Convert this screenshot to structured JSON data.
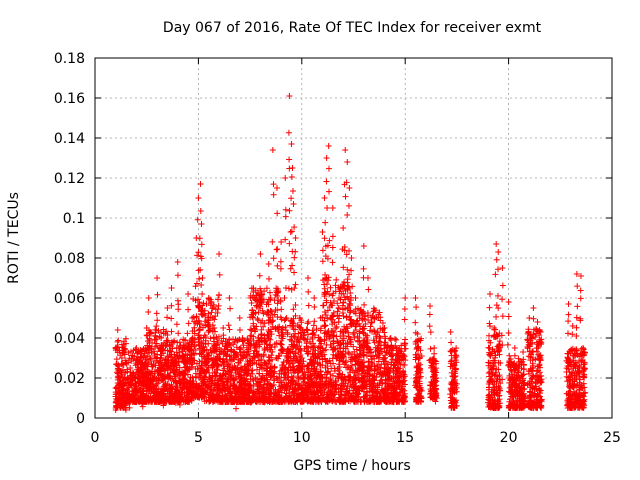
{
  "chart_data": {
    "type": "scatter",
    "title": "Day 067 of 2016, Rate Of TEC Index for receiver exmt",
    "xlabel": "GPS time / hours",
    "ylabel": "ROTI / TECUs",
    "xlim": [
      0,
      25
    ],
    "ylim": [
      0,
      0.18
    ],
    "x_ticks": [
      0,
      5,
      10,
      15,
      20,
      25
    ],
    "x_tick_labels": [
      "0",
      "5",
      "10",
      "15",
      "20",
      "25"
    ],
    "y_ticks": [
      0,
      0.02,
      0.04,
      0.06,
      0.08,
      0.1,
      0.12,
      0.14,
      0.16,
      0.18
    ],
    "y_tick_labels": [
      "0",
      "0.02",
      "0.04",
      "0.06",
      "0.08",
      "0.1",
      "0.12",
      "0.14",
      "0.16",
      "0.18"
    ],
    "grid": true,
    "marker": "plus",
    "color": "#ff0000",
    "series": [
      {
        "x": [
          1.0,
          1.1,
          1.2,
          1.3,
          1.5,
          1.7,
          2.0,
          2.3,
          2.5,
          2.6,
          2.7,
          2.8,
          3.0,
          3.2,
          3.3,
          3.5,
          3.7,
          3.9,
          4.0,
          4.1,
          4.3,
          4.5,
          4.7,
          4.9,
          5.0,
          5.1,
          5.15,
          5.2,
          5.25,
          5.3,
          5.5,
          5.7,
          5.9,
          6.0,
          6.2,
          6.5,
          6.8,
          7.0,
          7.3,
          7.5,
          7.7,
          8.0,
          8.2,
          8.4,
          8.5,
          8.6,
          8.8,
          9.0,
          9.2,
          9.4,
          9.5,
          9.55,
          9.6,
          9.7,
          9.9,
          10.0,
          10.3,
          10.6,
          10.9,
          11.0,
          11.1,
          11.2,
          11.3,
          11.5,
          11.8,
          12.0,
          12.1,
          12.2,
          12.3,
          12.4,
          12.6,
          12.8,
          13.0,
          13.2,
          13.5,
          13.8,
          14.0,
          14.3,
          14.6,
          14.9,
          15.0,
          15.5,
          15.6,
          15.7,
          16.2,
          16.4,
          16.5,
          17.2,
          17.4,
          19.1,
          19.3,
          19.4,
          19.5,
          19.7,
          20.0,
          20.3,
          20.5,
          20.7,
          21.0,
          21.2,
          21.4,
          21.5,
          22.9,
          23.1,
          23.3,
          23.5,
          23.6
        ],
        "y": [
          0.015,
          0.044,
          0.02,
          0.03,
          0.012,
          0.025,
          0.035,
          0.018,
          0.045,
          0.06,
          0.03,
          0.02,
          0.07,
          0.04,
          0.015,
          0.055,
          0.065,
          0.03,
          0.078,
          0.02,
          0.035,
          0.062,
          0.05,
          0.09,
          0.11,
          0.117,
          0.097,
          0.07,
          0.04,
          0.03,
          0.06,
          0.05,
          0.03,
          0.082,
          0.045,
          0.06,
          0.025,
          0.05,
          0.03,
          0.035,
          0.06,
          0.082,
          0.04,
          0.077,
          0.06,
          0.134,
          0.115,
          0.088,
          0.12,
          0.161,
          0.137,
          0.125,
          0.107,
          0.09,
          0.05,
          0.03,
          0.07,
          0.06,
          0.05,
          0.093,
          0.11,
          0.13,
          0.136,
          0.105,
          0.06,
          0.095,
          0.134,
          0.128,
          0.115,
          0.08,
          0.06,
          0.05,
          0.086,
          0.07,
          0.05,
          0.04,
          0.045,
          0.04,
          0.035,
          0.03,
          0.06,
          0.06,
          0.042,
          0.03,
          0.056,
          0.035,
          0.02,
          0.043,
          0.03,
          0.062,
          0.045,
          0.087,
          0.083,
          0.075,
          0.058,
          0.035,
          0.028,
          0.033,
          0.05,
          0.055,
          0.048,
          0.044,
          0.057,
          0.046,
          0.072,
          0.071,
          0.035
        ],
        "noise_note": "",
        "bands": [
          [
            1.0,
            1.5,
            0.005,
            0.04
          ],
          [
            1.5,
            2.5,
            0.008,
            0.035
          ],
          [
            2.5,
            3.5,
            0.008,
            0.045
          ],
          [
            3.5,
            4.7,
            0.008,
            0.04
          ],
          [
            4.7,
            5.3,
            0.01,
            0.06
          ],
          [
            5.3,
            6.0,
            0.008,
            0.06
          ],
          [
            6.0,
            7.5,
            0.008,
            0.04
          ],
          [
            7.5,
            9.0,
            0.008,
            0.065
          ],
          [
            9.0,
            10.0,
            0.008,
            0.05
          ],
          [
            10.0,
            11.0,
            0.008,
            0.045
          ],
          [
            11.0,
            12.5,
            0.008,
            0.07
          ],
          [
            12.5,
            14.0,
            0.008,
            0.055
          ],
          [
            14.0,
            15.0,
            0.008,
            0.04
          ],
          [
            15.5,
            15.8,
            0.008,
            0.04
          ],
          [
            16.2,
            16.5,
            0.01,
            0.03
          ],
          [
            17.2,
            17.5,
            0.005,
            0.035
          ],
          [
            19.0,
            19.6,
            0.005,
            0.045
          ],
          [
            20.0,
            20.8,
            0.005,
            0.03
          ],
          [
            20.9,
            21.6,
            0.005,
            0.045
          ],
          [
            22.8,
            23.7,
            0.005,
            0.035
          ]
        ]
      }
    ]
  }
}
